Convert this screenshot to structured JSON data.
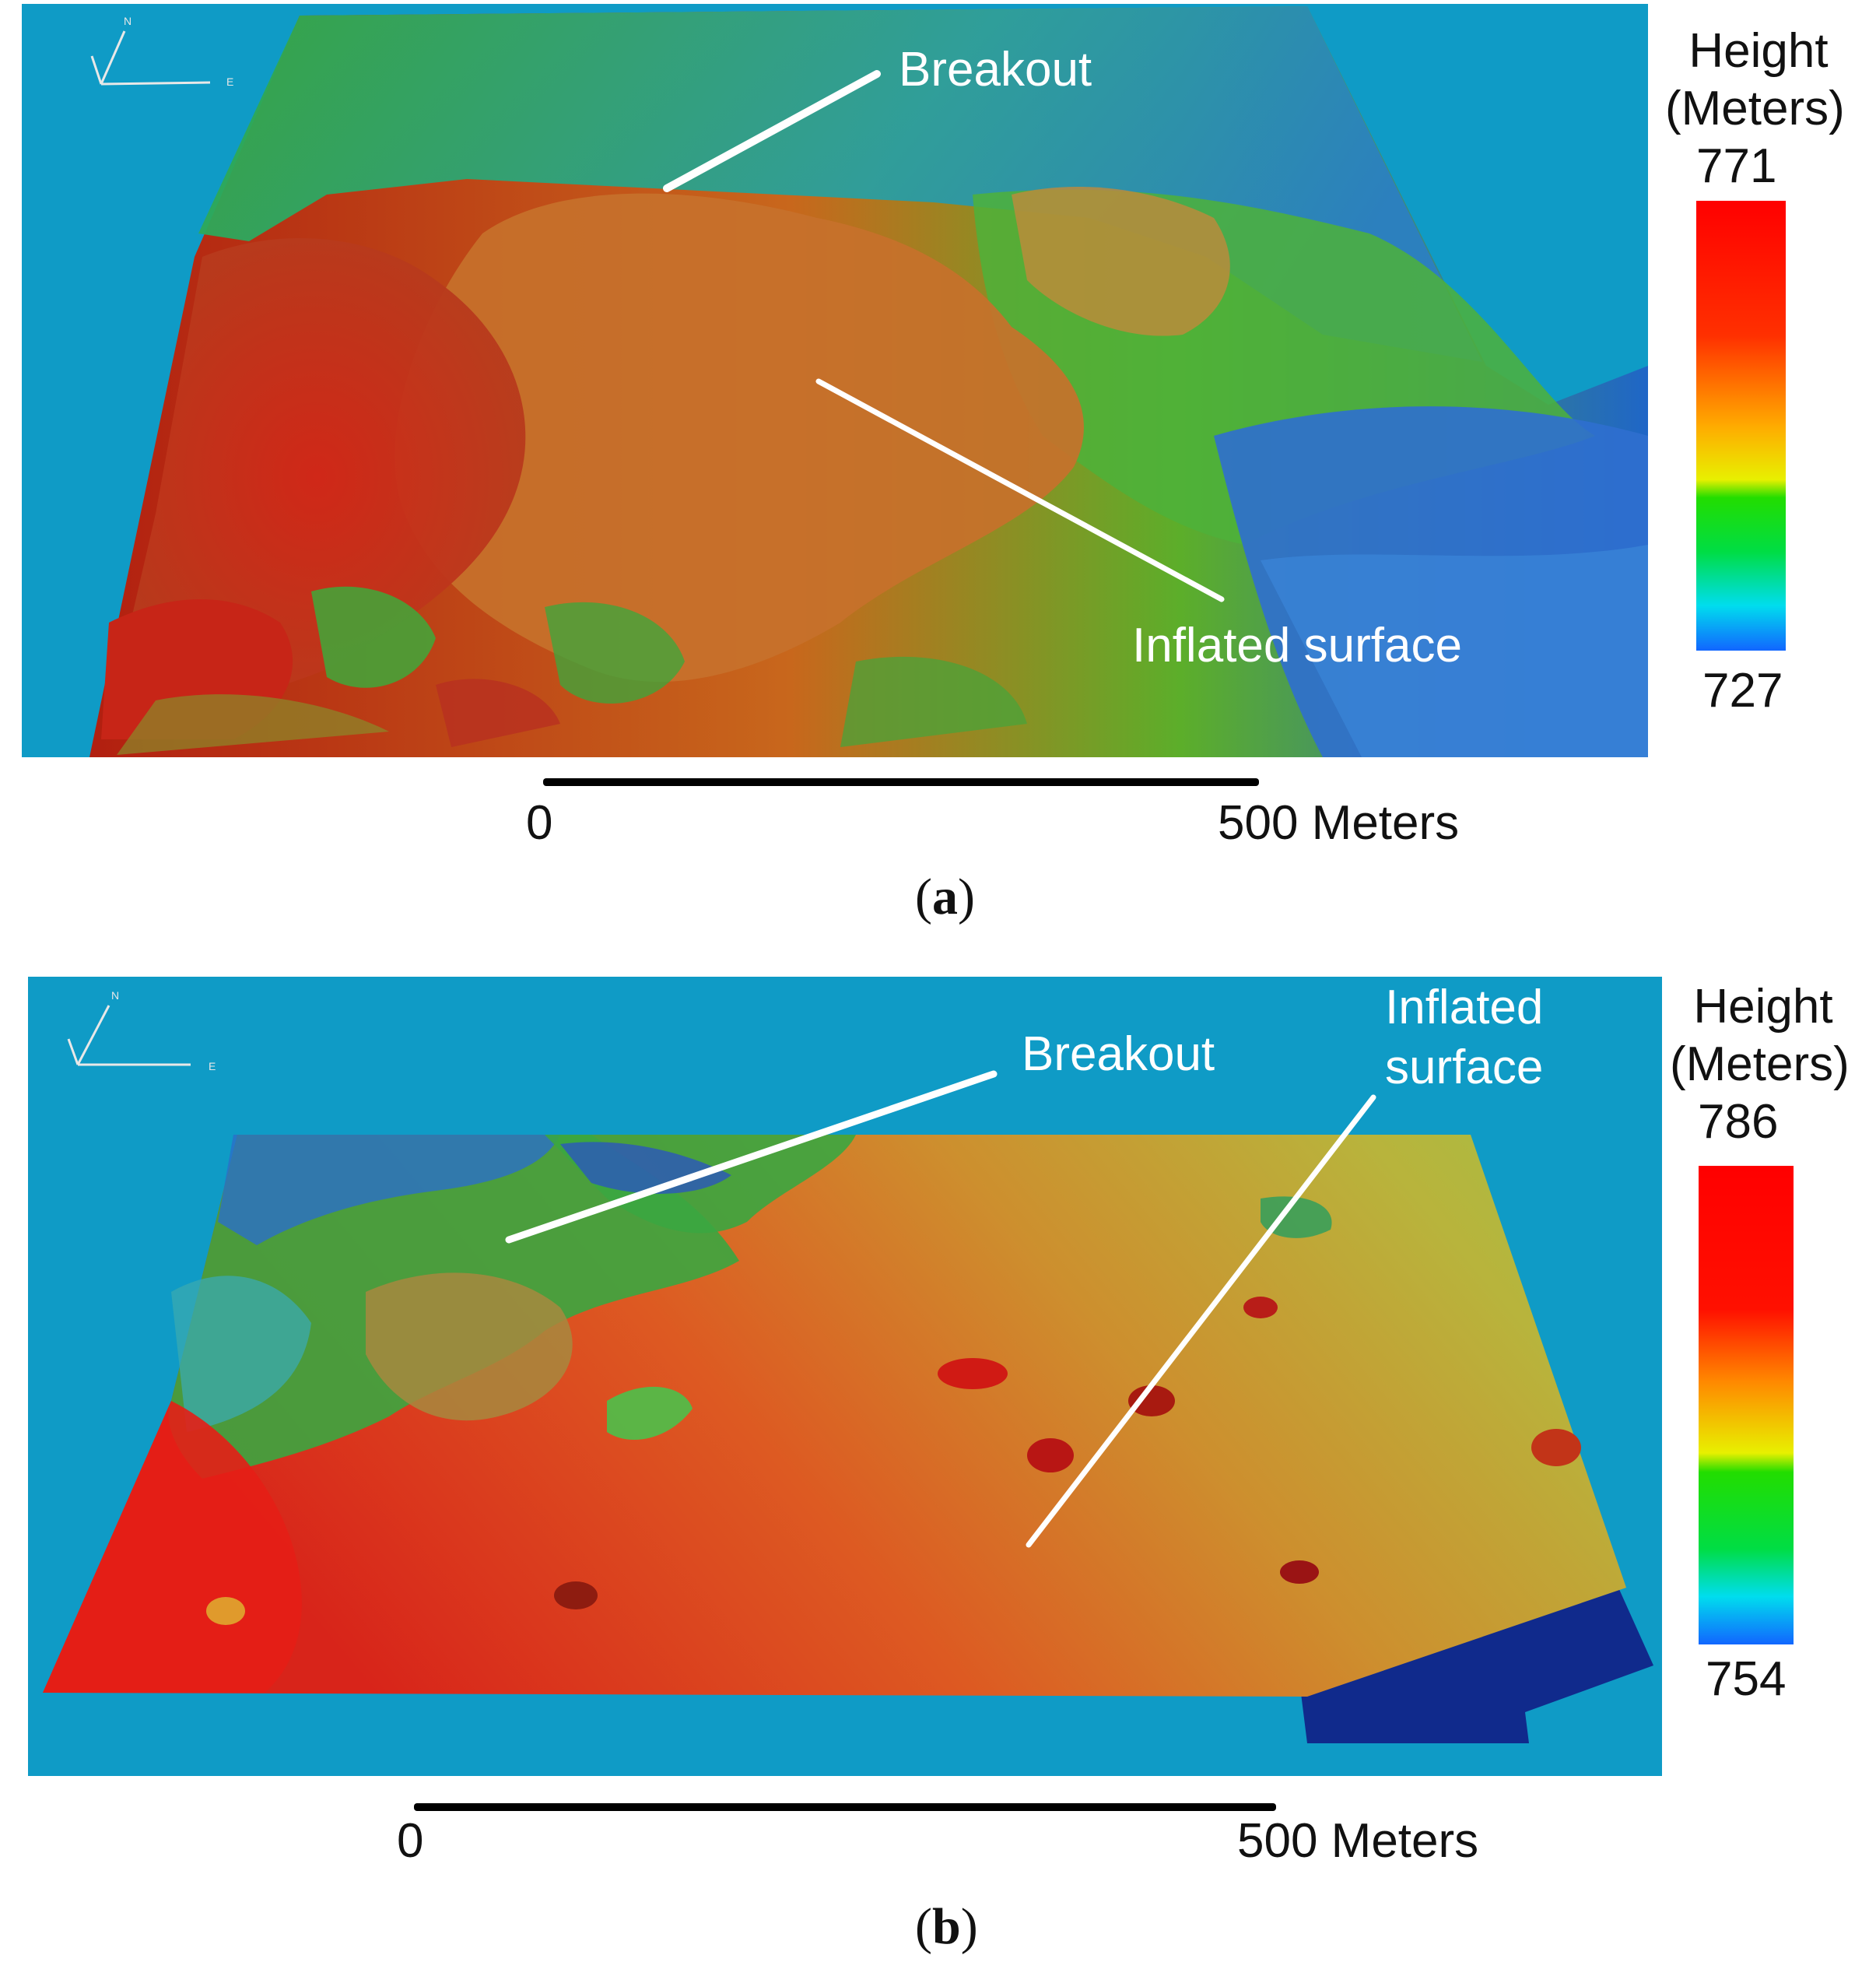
{
  "panels": [
    {
      "id": "a",
      "label": "a",
      "legend": {
        "title_line1": "Height",
        "title_line2": "(Meters)",
        "max": "771",
        "min": "727"
      },
      "annotations": {
        "breakout": "Breakout",
        "inflated": "Inflated surface"
      },
      "scale": {
        "start": "0",
        "end": "500 Meters"
      },
      "compass": {
        "north": "N",
        "east": "E"
      }
    },
    {
      "id": "b",
      "label": "b",
      "legend": {
        "title_line1": "Height",
        "title_line2": "(Meters)",
        "max": "786",
        "min": "754"
      },
      "annotations": {
        "breakout": "Breakout",
        "inflated_line1": "Inflated",
        "inflated_line2": "surface"
      },
      "scale": {
        "start": "0",
        "end": "500 Meters"
      },
      "compass": {
        "north": "N",
        "east": "E"
      }
    }
  ],
  "colors": {
    "background": "#0f9bc6",
    "high": "#ff0000",
    "mid_high": "#ff9900",
    "mid": "#ffff00",
    "mid_low": "#00cc00",
    "low_cyan": "#00ffff",
    "low": "#0055ff",
    "annotation_line": "#ffffff"
  }
}
